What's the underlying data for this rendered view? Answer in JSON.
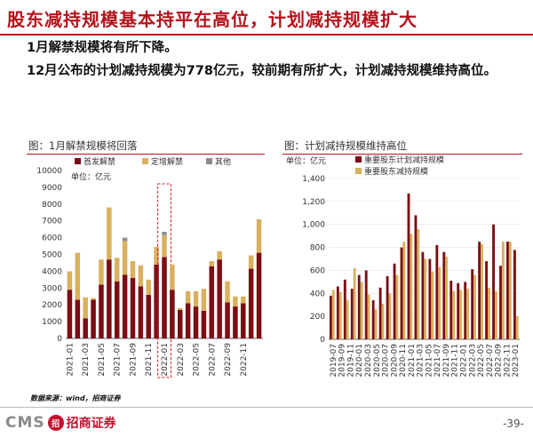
{
  "page": {
    "title": "股东减持规模基本持平在高位，计划减持规模扩大",
    "bullets": [
      "1月解禁规模将有所下降。",
      "12月公布的计划减持规模为778亿元，较前期有所扩大，计划减持规模维持高位。"
    ],
    "source": "数据来源：wind，招商证券",
    "logo_text": "CMS",
    "logo_seal": "招",
    "brand": "招商证券",
    "page_number": "-39-"
  },
  "chart_data": [
    {
      "type": "bar",
      "stacked": true,
      "title": "图：1月解禁规模将回落",
      "unit_label": "单位：亿元",
      "ylim": [
        0,
        10000
      ],
      "yticks": [
        0,
        1000,
        2000,
        3000,
        4000,
        5000,
        6000,
        7000,
        8000,
        9000,
        10000
      ],
      "x_tick_labels": [
        "2021-01",
        "2021-03",
        "2021-05",
        "2021-07",
        "2021-09",
        "2021-11",
        "2022-01",
        "2022-03",
        "2022-05",
        "2022-07",
        "2022-09",
        "2022-11"
      ],
      "categories": [
        "2021-01",
        "2021-02",
        "2021-03",
        "2021-04",
        "2021-05",
        "2021-06",
        "2021-07",
        "2021-08",
        "2021-09",
        "2021-10",
        "2021-11",
        "2021-12",
        "2022-01",
        "2022-02",
        "2022-03",
        "2022-04",
        "2022-05",
        "2022-06",
        "2022-07",
        "2022-08",
        "2022-09",
        "2022-10",
        "2022-11",
        "2022-12",
        "2023-01"
      ],
      "series": [
        {
          "name": "首发解禁",
          "color": "#7b0d14",
          "values": [
            2900,
            2300,
            1200,
            2300,
            3200,
            4700,
            3400,
            3800,
            3600,
            3100,
            2600,
            4400,
            4850,
            2900,
            1700,
            2100,
            1900,
            1650,
            4300,
            4700,
            2150,
            1900,
            2100,
            4150,
            5100
          ]
        },
        {
          "name": "定增解禁",
          "color": "#d8b15e",
          "values": [
            1100,
            2800,
            1250,
            100,
            1500,
            3100,
            1400,
            2000,
            1000,
            1250,
            900,
            1050,
            1300,
            1500,
            100,
            700,
            900,
            1300,
            300,
            500,
            1250,
            600,
            400,
            800,
            2000
          ]
        },
        {
          "name": "其他",
          "color": "#8c8c8c",
          "values": [
            0,
            0,
            0,
            0,
            0,
            0,
            0,
            200,
            0,
            0,
            0,
            0,
            200,
            0,
            0,
            0,
            0,
            0,
            0,
            0,
            0,
            0,
            0,
            0,
            0
          ]
        }
      ],
      "highlight": "2022-01"
    },
    {
      "type": "bar",
      "title": "图：计划减持规模维持高位",
      "unit_label": "单位：亿元",
      "ylim": [
        0,
        1400
      ],
      "yticks": [
        0,
        200,
        400,
        600,
        800,
        1000,
        1200,
        1400
      ],
      "x_tick_labels": [
        "2019-07",
        "2019-09",
        "2019-11",
        "2020-01",
        "2020-03",
        "2020-05",
        "2020-07",
        "2020-09",
        "2020-11",
        "2021-01",
        "2021-03",
        "2021-05",
        "2021-07",
        "2021-09",
        "2021-11",
        "2022-01",
        "2022-03",
        "2022-05",
        "2022-07",
        "2022-09",
        "2022-11",
        "2023-01"
      ],
      "series": [
        {
          "name": "重要股东计划减持规模",
          "color": "#7b0d14",
          "values": [
            380,
            460,
            520,
            440,
            560,
            600,
            340,
            450,
            550,
            660,
            800,
            1270,
            1080,
            760,
            700,
            820,
            760,
            510,
            490,
            500,
            610,
            850,
            680,
            1000,
            640,
            850,
            778
          ]
        },
        {
          "name": "重要股东减持规模",
          "color": "#d8b15e",
          "values": [
            430,
            410,
            340,
            620,
            500,
            390,
            260,
            310,
            400,
            560,
            850,
            920,
            960,
            700,
            590,
            630,
            720,
            420,
            430,
            440,
            560,
            830,
            450,
            420,
            850,
            850,
            200
          ]
        }
      ]
    }
  ]
}
